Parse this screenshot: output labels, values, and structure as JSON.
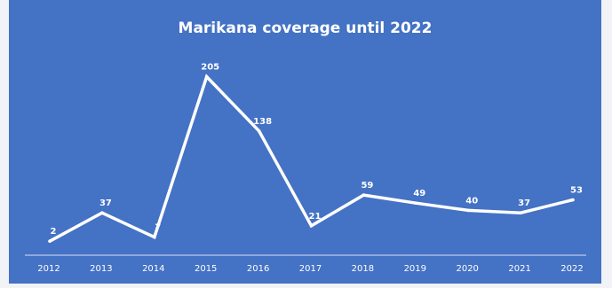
{
  "chart_data": {
    "type": "line",
    "title": "Marikana coverage until 2022",
    "xlabel": "",
    "ylabel": "",
    "x": [
      "2012",
      "2013",
      "2014",
      "2015",
      "2016",
      "2017",
      "2018",
      "2019",
      "2020",
      "2021",
      "2022"
    ],
    "series": [
      {
        "values": [
          2,
          37,
          7,
          205,
          138,
          21,
          59,
          49,
          40,
          37,
          53
        ]
      }
    ],
    "data_labels": [
      "2",
      "37",
      "7",
      "205",
      "138",
      "21",
      "59",
      "49",
      "40",
      "37",
      "53"
    ],
    "ylim": [
      0,
      210
    ],
    "grid": false,
    "legend": "none",
    "colors": {
      "background": "#4472c4",
      "line": "#ffffff",
      "text": "#ffffff",
      "axis": "#d9e2f3"
    }
  }
}
